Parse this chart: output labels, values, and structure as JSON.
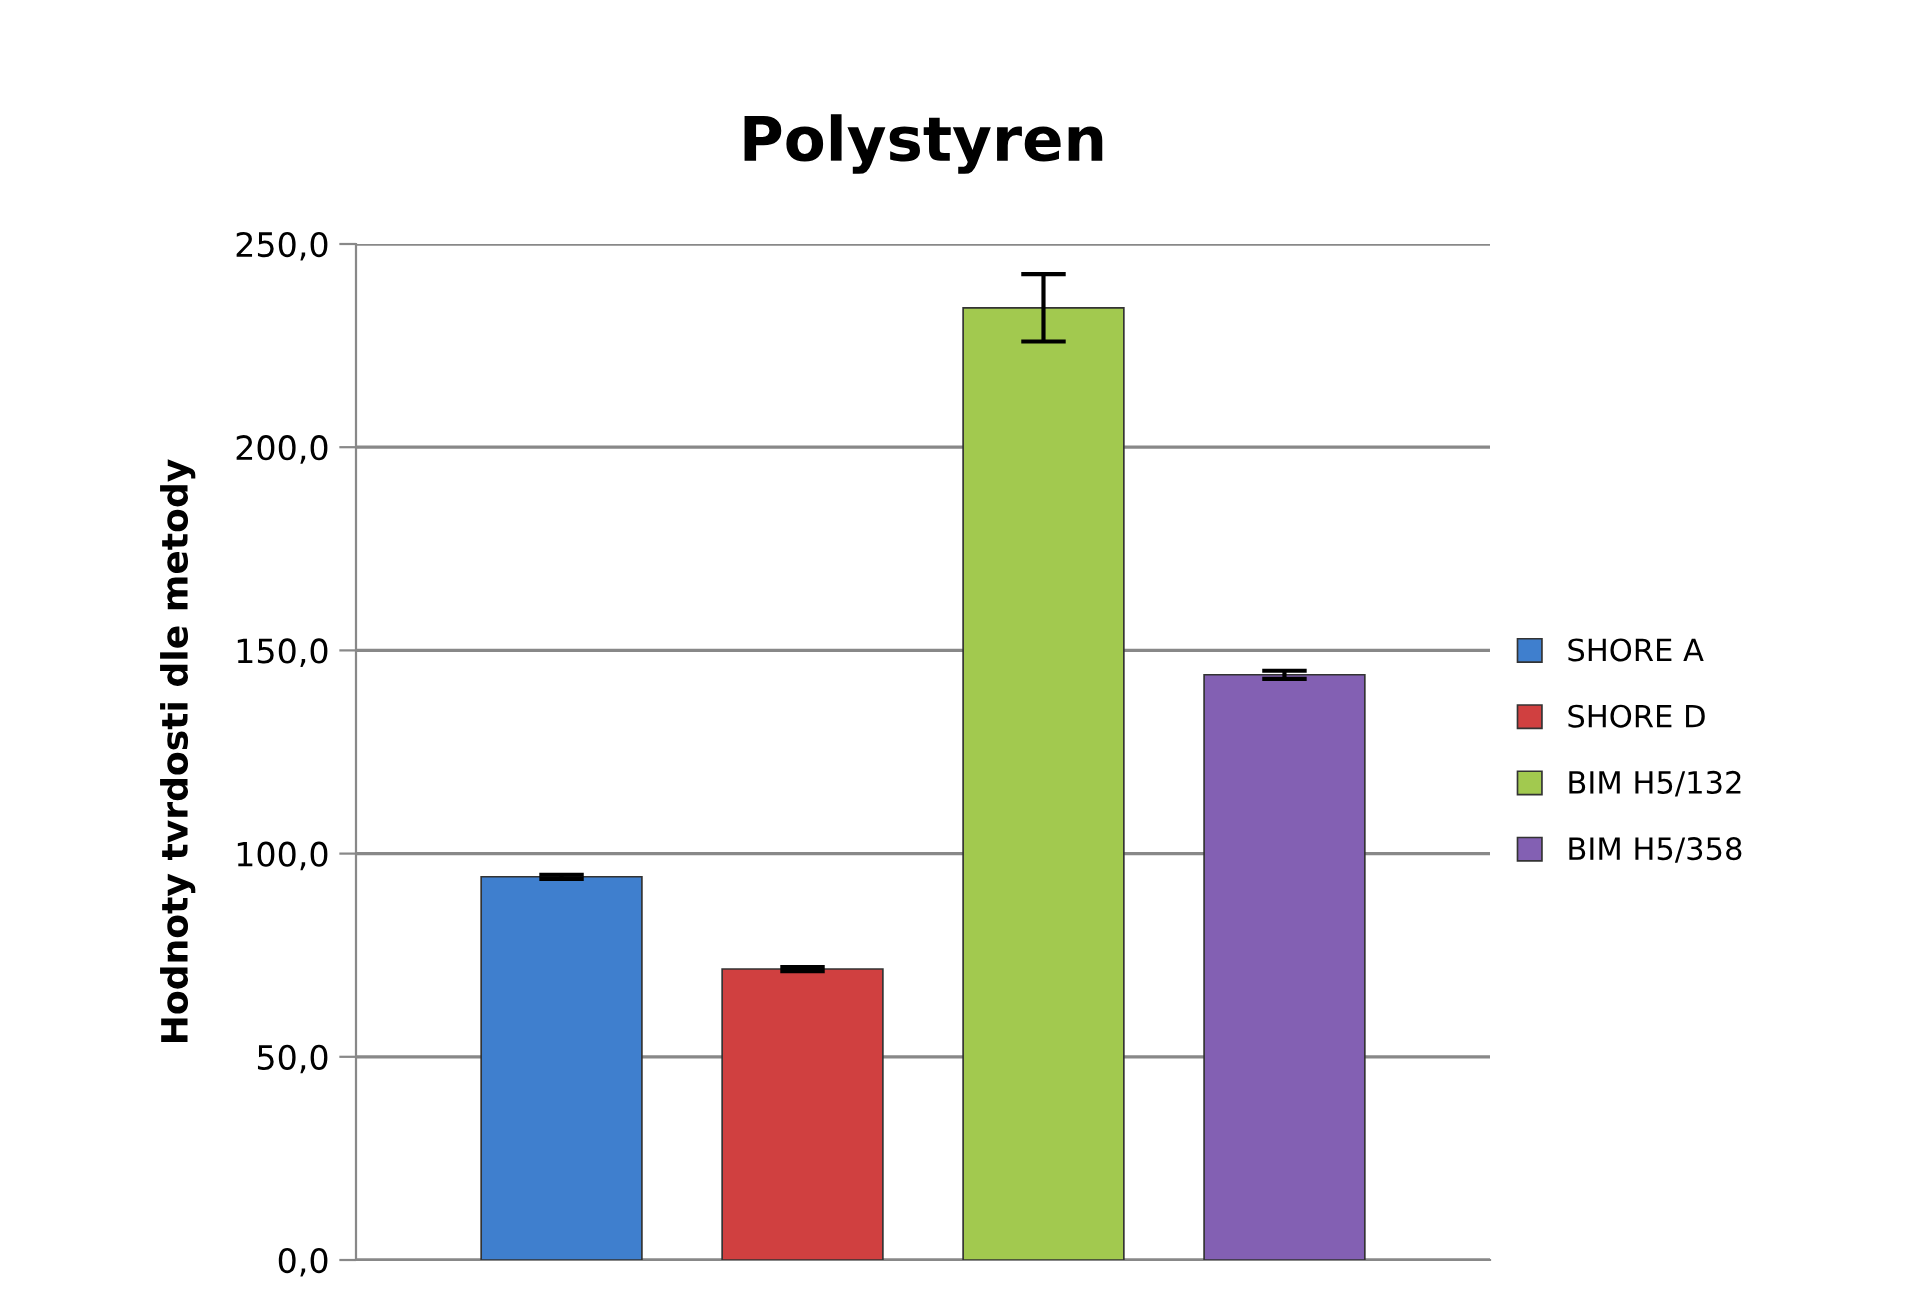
{
  "chart_data": {
    "type": "bar",
    "title": "Polystyren",
    "ylabel": "Hodnoty tvrdosti dle metody",
    "categories": [
      null
    ],
    "series": [
      {
        "name": "SHORE A",
        "color": "#3f7fce",
        "values": [
          94.3
        ],
        "errors": [
          0.5
        ]
      },
      {
        "name": "SHORE D",
        "color": "#d04040",
        "values": [
          71.6
        ],
        "errors": [
          0.5
        ]
      },
      {
        "name": "BIM H5/132",
        "color": "#a2c94f",
        "values": [
          234.3
        ],
        "errors": [
          8.3
        ]
      },
      {
        "name": "BIM H5/358",
        "color": "#8360b3",
        "values": [
          144.0
        ],
        "errors": [
          1.0
        ]
      }
    ],
    "ylim": [
      0,
      250
    ],
    "yticks": [
      {
        "value": 0,
        "label": "0,0"
      },
      {
        "value": 50,
        "label": "50,0"
      },
      {
        "value": 100,
        "label": "100,0"
      },
      {
        "value": 150,
        "label": "150,0"
      },
      {
        "value": 200,
        "label": "200,0"
      },
      {
        "value": 250,
        "label": "250,0"
      }
    ],
    "grid": "y",
    "legend": "right"
  }
}
